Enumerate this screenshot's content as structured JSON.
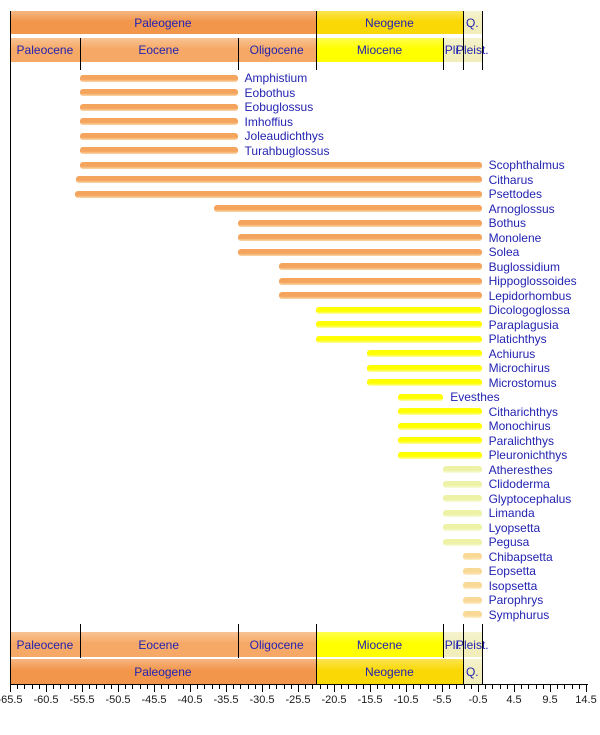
{
  "chart_data": {
    "type": "bar",
    "subtype": "stratigraphic-range-timeline",
    "title": "",
    "xlabel": "",
    "ylabel": "",
    "axis": {
      "min": -65.5,
      "max": 14.5,
      "minor_step": 1,
      "major_step": 5,
      "tick_labels": [
        "-65.5",
        "-60.5",
        "-55.5",
        "-50.5",
        "-45.5",
        "-40.5",
        "-35.5",
        "-30.5",
        "-25.5",
        "-20.5",
        "-15.5",
        "-10.5",
        "-5.5",
        "-0.5",
        "4.5",
        "9.5",
        "14.5"
      ]
    },
    "periods": [
      {
        "label": "Paleogene",
        "start": -65.5,
        "end": -23.03,
        "color_key": "period_paleogene"
      },
      {
        "label": "Neogene",
        "start": -23.03,
        "end": -2.58,
        "color_key": "period_neogene"
      },
      {
        "label": "Q.",
        "start": -2.58,
        "end": 0,
        "color_key": "pale_box"
      }
    ],
    "epochs": [
      {
        "label": "Paleocene",
        "start": -65.5,
        "end": -55.8,
        "color_key": "epoch_paleogene"
      },
      {
        "label": "Eocene",
        "start": -55.8,
        "end": -33.9,
        "color_key": "epoch_paleogene"
      },
      {
        "label": "Oligocene",
        "start": -33.9,
        "end": -23.03,
        "color_key": "epoch_paleogene"
      },
      {
        "label": "Miocene",
        "start": -23.03,
        "end": -5.33,
        "color_key": "epoch_miocene"
      },
      {
        "label": "Pli.",
        "start": -5.33,
        "end": -2.58,
        "color_key": "pale_box"
      },
      {
        "label": "Pleist.",
        "start": -2.58,
        "end": 0,
        "color_key": "pale_box"
      }
    ],
    "taxa": [
      {
        "name": "Amphistium",
        "start": -55.8,
        "end": -33.9,
        "group": "orange"
      },
      {
        "name": "Eobothus",
        "start": -55.8,
        "end": -33.9,
        "group": "orange"
      },
      {
        "name": "Eobuglossus",
        "start": -55.8,
        "end": -33.9,
        "group": "orange"
      },
      {
        "name": "Imhoffius",
        "start": -55.8,
        "end": -33.9,
        "group": "orange"
      },
      {
        "name": "Joleaudichthys",
        "start": -55.8,
        "end": -33.9,
        "group": "orange"
      },
      {
        "name": "Turahbuglossus",
        "start": -55.8,
        "end": -33.9,
        "group": "orange"
      },
      {
        "name": "Scophthalmus",
        "start": -55.8,
        "end": 0,
        "group": "orange"
      },
      {
        "name": "Citharus",
        "start": -56.3,
        "end": 0,
        "group": "orange"
      },
      {
        "name": "Psettodes",
        "start": -56.5,
        "end": 0,
        "group": "orange"
      },
      {
        "name": "Arnoglossus",
        "start": -37.2,
        "end": 0,
        "group": "orange"
      },
      {
        "name": "Bothus",
        "start": -33.9,
        "end": 0,
        "group": "orange"
      },
      {
        "name": "Monolene",
        "start": -33.9,
        "end": 0,
        "group": "orange"
      },
      {
        "name": "Solea",
        "start": -33.9,
        "end": 0,
        "group": "orange"
      },
      {
        "name": "Buglossidium",
        "start": -28.1,
        "end": 0,
        "group": "orange"
      },
      {
        "name": "Hippoglossoides",
        "start": -28.1,
        "end": 0,
        "group": "orange"
      },
      {
        "name": "Lepidorhombus",
        "start": -28.1,
        "end": 0,
        "group": "orange"
      },
      {
        "name": "Dicologoglossa",
        "start": -23.03,
        "end": 0,
        "group": "yellow"
      },
      {
        "name": "Paraplagusia",
        "start": -23.03,
        "end": 0,
        "group": "yellow"
      },
      {
        "name": "Platichthys",
        "start": -23.03,
        "end": 0,
        "group": "yellow"
      },
      {
        "name": "Achiurus",
        "start": -15.97,
        "end": 0,
        "group": "yellow"
      },
      {
        "name": "Microchirus",
        "start": -15.97,
        "end": 0,
        "group": "yellow"
      },
      {
        "name": "Microstomus",
        "start": -15.97,
        "end": 0,
        "group": "yellow"
      },
      {
        "name": "Evesthes",
        "start": -11.6,
        "end": -5.33,
        "group": "yellow"
      },
      {
        "name": "Citharichthys",
        "start": -11.6,
        "end": 0,
        "group": "yellow"
      },
      {
        "name": "Monochirus",
        "start": -11.6,
        "end": 0,
        "group": "yellow"
      },
      {
        "name": "Paralichthys",
        "start": -11.6,
        "end": 0,
        "group": "yellow"
      },
      {
        "name": "Pleuronichthys",
        "start": -11.6,
        "end": 0,
        "group": "yellow"
      },
      {
        "name": "Atheresthes",
        "start": -5.33,
        "end": 0,
        "group": "pale_green"
      },
      {
        "name": "Clidoderma",
        "start": -5.33,
        "end": 0,
        "group": "pale_green"
      },
      {
        "name": "Glyptocephalus",
        "start": -5.33,
        "end": 0,
        "group": "pale_green"
      },
      {
        "name": "Limanda",
        "start": -5.33,
        "end": 0,
        "group": "pale_green"
      },
      {
        "name": "Lyopsetta",
        "start": -5.33,
        "end": 0,
        "group": "pale_green"
      },
      {
        "name": "Pegusa",
        "start": -5.33,
        "end": 0,
        "group": "pale_green"
      },
      {
        "name": "Chibapsetta",
        "start": -2.58,
        "end": 0,
        "group": "pale_orange"
      },
      {
        "name": "Eopsetta",
        "start": -2.58,
        "end": 0,
        "group": "pale_orange"
      },
      {
        "name": "Isopsetta",
        "start": -2.58,
        "end": 0,
        "group": "pale_orange"
      },
      {
        "name": "Parophrys",
        "start": -2.58,
        "end": 0,
        "group": "pale_orange"
      },
      {
        "name": "Symphurus",
        "start": -2.58,
        "end": 0,
        "group": "pale_orange"
      }
    ]
  },
  "colors": {
    "label_text": "#2323b2",
    "axis_text": "#1a1a1a",
    "line": "#000000",
    "period_paleogene": "#f2964c",
    "epoch_paleogene": "#f6a966",
    "period_neogene": "#fad806",
    "epoch_miocene": "#ffff00",
    "pale_box": "#f1eebb",
    "bars": {
      "orange": {
        "main": "#f4a45c",
        "fade": "#fad7aa"
      },
      "yellow": {
        "main": "#ffff00",
        "fade": "#ffffb0"
      },
      "pale_green": {
        "main": "#edf2a6",
        "fade": "#f9fbd9"
      },
      "pale_orange": {
        "main": "#f8d996",
        "fade": "#fdeecb"
      }
    }
  }
}
